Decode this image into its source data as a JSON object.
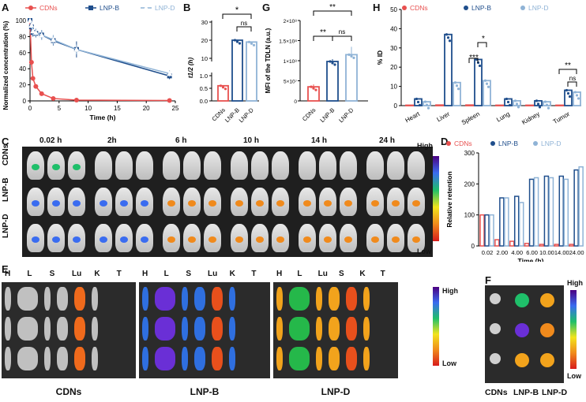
{
  "panel_labels": [
    "A",
    "B",
    "G",
    "H",
    "C",
    "D",
    "E",
    "F"
  ],
  "chart_data": [
    {
      "id": "A",
      "type": "line",
      "xlabel": "Time (h)",
      "ylabel": "Normalized concentration (%)",
      "xlim": [
        0,
        25
      ],
      "ylim": [
        0,
        100
      ],
      "xticks": [
        0,
        5,
        10,
        15,
        20,
        25
      ],
      "yticks": [
        0,
        20,
        40,
        60,
        80,
        100
      ],
      "legend": [
        "CDNs",
        "LNP-B",
        "LNP-D"
      ],
      "series": [
        {
          "name": "CDNs",
          "color": "#e8504f",
          "marker": "circle",
          "x": [
            0,
            0.25,
            0.5,
            1,
            2,
            4,
            8,
            24
          ],
          "y": [
            100,
            48,
            28,
            18,
            9,
            3,
            1,
            0.5
          ]
        },
        {
          "name": "LNP-B",
          "color": "#1f4e8c",
          "marker": "square",
          "x": [
            0,
            0.25,
            0.5,
            1,
            2,
            4,
            8,
            24
          ],
          "y": [
            100,
            92,
            85,
            84,
            82,
            75,
            64,
            31
          ],
          "err": [
            0,
            4,
            5,
            5,
            6,
            6,
            10,
            4
          ]
        },
        {
          "name": "LNP-D",
          "color": "#8fb3d6",
          "marker": "triangle",
          "x": [
            0,
            0.25,
            0.5,
            1,
            2,
            4,
            8,
            24
          ],
          "y": [
            100,
            94,
            87,
            85,
            82,
            76,
            64,
            34
          ],
          "err": [
            0,
            4,
            5,
            5,
            6,
            6,
            6,
            4
          ]
        }
      ]
    },
    {
      "id": "B",
      "type": "bar",
      "ylabel": "t1/2 (h)",
      "categories": [
        "CDNs",
        "LNP-B",
        "LNP-D"
      ],
      "values": [
        0.6,
        20,
        19
      ],
      "colors": [
        "#e8504f",
        "#1f4e8c",
        "#8fb3d6"
      ],
      "lower_ticks": [
        "0.0",
        "0.5",
        "1.0"
      ],
      "upper_ticks": [
        "10",
        "20",
        "30"
      ],
      "annotations": [
        "*",
        "ns"
      ]
    },
    {
      "id": "G",
      "type": "bar",
      "ylabel": "MFI of the TDLN (a.u.)",
      "categories": [
        "CDNs",
        "LNP-B",
        "LNP-D"
      ],
      "values": [
        35000000.0,
        98000000.0,
        115000000.0
      ],
      "colors": [
        "#e8504f",
        "#1f4e8c",
        "#8fb3d6"
      ],
      "ytick_labels": [
        "0",
        "5×10⁷",
        "1×10⁸",
        "1.5×10⁸",
        "2×10⁸"
      ],
      "ylim": [
        0,
        200000000.0
      ],
      "annotations": [
        "**",
        "**",
        "ns"
      ]
    },
    {
      "id": "H",
      "type": "bar",
      "ylabel": "% ID",
      "categories": [
        "Heart",
        "Liver",
        "Spleen",
        "Lung",
        "Kidney",
        "Tumor"
      ],
      "legend": [
        "CDNs",
        "LNP-B",
        "LNP-D"
      ],
      "ylim": [
        0,
        50
      ],
      "yticks": [
        0,
        10,
        20,
        30,
        40,
        50
      ],
      "series": [
        {
          "name": "CDNs",
          "color": "#e8504f",
          "values": [
            0.2,
            0.3,
            0.3,
            0.2,
            0.2,
            0.2
          ]
        },
        {
          "name": "LNP-B",
          "color": "#1f4e8c",
          "values": [
            3.5,
            37,
            24,
            3.5,
            2.5,
            8
          ]
        },
        {
          "name": "LNP-D",
          "color": "#8fb3d6",
          "values": [
            2,
            12,
            13,
            2.5,
            2,
            7
          ]
        }
      ],
      "annotations": [
        "***",
        "*",
        "**",
        "ns"
      ]
    },
    {
      "id": "D",
      "type": "bar",
      "xlabel": "Time (h)",
      "ylabel": "Relative retention",
      "categories": [
        "0.02",
        "2.00",
        "4.00",
        "6.00",
        "10.00",
        "14.00",
        "24.00"
      ],
      "legend": [
        "CDNs",
        "LNP-B",
        "LNP-D"
      ],
      "ylim": [
        0,
        300
      ],
      "yticks": [
        0,
        100,
        200,
        300
      ],
      "series": [
        {
          "name": "CDNs",
          "color": "#e8504f",
          "values": [
            100,
            20,
            15,
            8,
            5,
            5,
            5
          ]
        },
        {
          "name": "LNP-B",
          "color": "#1f4e8c",
          "values": [
            100,
            155,
            160,
            215,
            225,
            225,
            245
          ]
        },
        {
          "name": "LNP-D",
          "color": "#8fb3d6",
          "values": [
            100,
            155,
            140,
            220,
            220,
            215,
            255
          ]
        }
      ]
    }
  ],
  "panel_C": {
    "time_labels": [
      "0.02 h",
      "2h",
      "6 h",
      "10 h",
      "14 h",
      "24 h"
    ],
    "rows": [
      "CDNs",
      "LNP-B",
      "LNP-D"
    ],
    "scale_high": "High",
    "scale_low": "Low"
  },
  "panel_E": {
    "groups": [
      {
        "caption": "CDNs",
        "organs": [
          "H",
          "L",
          "S",
          "Lu",
          "K",
          "T"
        ]
      },
      {
        "caption": "LNP-B",
        "organs": [
          "H",
          "L",
          "S",
          "Lu",
          "K",
          "T"
        ]
      },
      {
        "caption": "LNP-D",
        "organs": [
          "H",
          "L",
          "Lu",
          "S",
          "K",
          "T"
        ]
      }
    ],
    "scale_high": "High",
    "scale_low": "Low"
  },
  "panel_F": {
    "captions": [
      "CDNs",
      "LNP-B",
      "LNP-D"
    ],
    "scale_high": "High",
    "scale_low": "Low"
  }
}
